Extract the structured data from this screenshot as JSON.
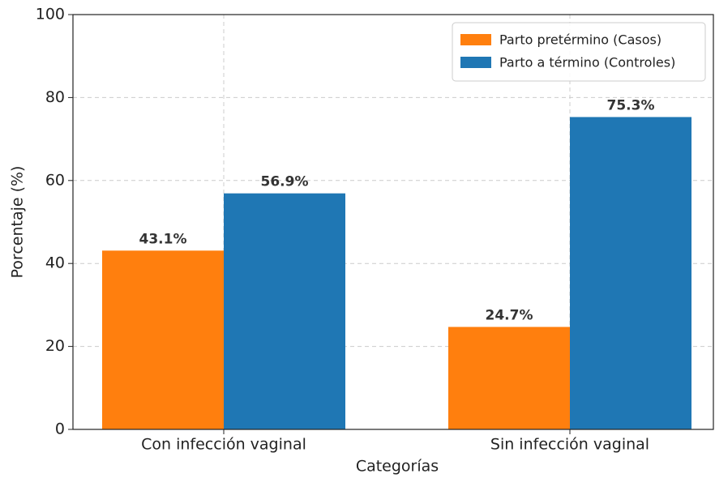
{
  "chart_data": {
    "type": "bar",
    "xlabel": "Categorías",
    "ylabel": "Porcentaje (%)",
    "categories": [
      "Con infección vaginal",
      "Sin infección vaginal"
    ],
    "series": [
      {
        "name": "Parto pretérmino (Casos)",
        "color": "#ff7f0e",
        "values": [
          43.1,
          24.7
        ],
        "value_labels": [
          "43.1%",
          "24.7%"
        ]
      },
      {
        "name": "Parto a término (Controles)",
        "color": "#1f77b4",
        "values": [
          56.9,
          75.3
        ],
        "value_labels": [
          "56.9%",
          "75.3%"
        ]
      }
    ],
    "ylim": [
      0,
      100
    ],
    "yticks": [
      0,
      20,
      40,
      60,
      80,
      100
    ],
    "grid": true,
    "legend": "upper right"
  }
}
